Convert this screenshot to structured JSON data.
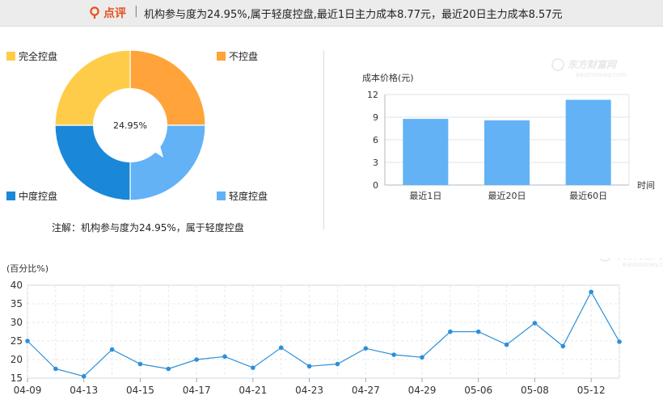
{
  "header": {
    "review_label": "点评",
    "separator": "|",
    "summary": "机构参与度为24.95%,属于轻度控盘,最近1日主力成本8.77元，最近20日主力成本8.57元"
  },
  "donut": {
    "center_label": "24.95%",
    "note": "注解：机构参与度为24.95%，属于轻度控盘",
    "legend": [
      {
        "label": "完全控盘",
        "color": "#ffcc4a"
      },
      {
        "label": "不控盘",
        "color": "#ffa33a"
      },
      {
        "label": "中度控盘",
        "color": "#1b87d8"
      },
      {
        "label": "轻度控盘",
        "color": "#62b2f5"
      }
    ]
  },
  "watermark": {
    "cn": "东方财富网",
    "en": "eastmoney.com"
  },
  "chart_data": [
    {
      "type": "pie",
      "labels": [
        "完全控盘",
        "不控盘",
        "中度控盘",
        "轻度控盘"
      ],
      "values": [
        25,
        25,
        25,
        25
      ],
      "highlight": "轻度控盘",
      "highlight_value": 24.95,
      "colors": [
        "#ffcc4a",
        "#ffa33a",
        "#1b87d8",
        "#62b2f5"
      ]
    },
    {
      "type": "bar",
      "ylabel": "成本价格(元)",
      "xlabel": "时间",
      "categories": [
        "最近1日",
        "最近20日",
        "最近60日"
      ],
      "values": [
        8.77,
        8.57,
        11.3
      ],
      "ylim": [
        0,
        12
      ],
      "yticks": [
        0,
        3,
        6,
        9,
        12
      ],
      "grid": true,
      "color": "#62b2f5"
    },
    {
      "type": "line",
      "ylabel": "(百分比%)",
      "x": [
        "04-09",
        "04-10",
        "04-13",
        "04-14",
        "04-15",
        "04-16",
        "04-17",
        "04-20",
        "04-21",
        "04-22",
        "04-23",
        "04-24",
        "04-27",
        "04-28",
        "04-29",
        "04-30",
        "05-06",
        "05-07",
        "05-08",
        "05-11",
        "05-12",
        "05-13"
      ],
      "xtick_labels": [
        "04-09",
        "04-13",
        "04-15",
        "04-17",
        "04-21",
        "04-23",
        "04-27",
        "04-29",
        "05-06",
        "05-08",
        "05-12"
      ],
      "values": [
        25.0,
        17.5,
        15.5,
        22.7,
        18.8,
        17.5,
        20.0,
        20.8,
        17.8,
        23.2,
        18.2,
        18.8,
        23.0,
        21.3,
        20.6,
        27.5,
        27.5,
        24.0,
        29.8,
        23.6,
        38.2,
        24.8
      ],
      "ylim": [
        15,
        40
      ],
      "yticks": [
        15,
        20,
        25,
        30,
        35,
        40
      ],
      "grid": true,
      "color": "#2d8fd8"
    }
  ]
}
